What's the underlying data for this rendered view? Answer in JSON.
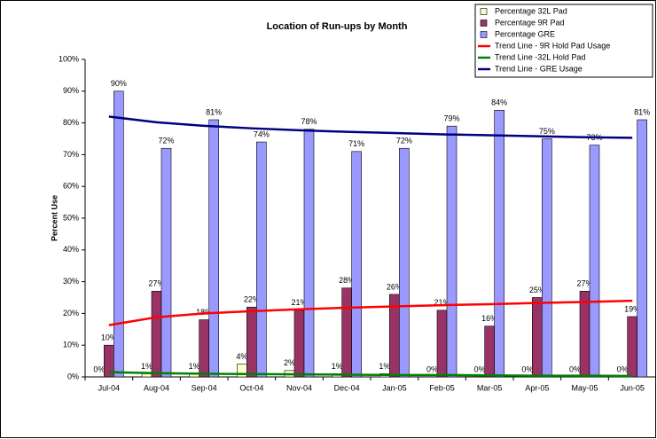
{
  "chart_data": {
    "type": "bar",
    "title": "Location of Run-ups by Month",
    "y_label": "Percent Use",
    "categories": [
      "Jul-04",
      "Aug-04",
      "Sep-04",
      "Oct-04",
      "Nov-04",
      "Dec-04",
      "Jan-05",
      "Feb-05",
      "Mar-05",
      "Apr-05",
      "May-05",
      "Jun-05"
    ],
    "ylim": [
      0,
      100
    ],
    "yticks": [
      {
        "value": 0,
        "label": "0%"
      },
      {
        "value": 10,
        "label": "10%"
      },
      {
        "value": 20,
        "label": "20%"
      },
      {
        "value": 30,
        "label": "30%"
      },
      {
        "value": 40,
        "label": "40%"
      },
      {
        "value": 50,
        "label": "50%"
      },
      {
        "value": 60,
        "label": "60%"
      },
      {
        "value": 70,
        "label": "70%"
      },
      {
        "value": 80,
        "label": "80%"
      },
      {
        "value": 90,
        "label": "90%"
      },
      {
        "value": 100,
        "label": "100%"
      }
    ],
    "grid": false,
    "legend": "top-right",
    "series": [
      {
        "name": "Percentage 32L Pad",
        "type": "bar",
        "color": "#ffffcc",
        "values": [
          0,
          1,
          1,
          4,
          2,
          1,
          1,
          0,
          0,
          0,
          0,
          0
        ],
        "value_labels": [
          "0%",
          "1%",
          "1%",
          "4%",
          "2%",
          "1%",
          "1%",
          "0%",
          "0%",
          "0%",
          "0%",
          "0%"
        ]
      },
      {
        "name": "Percentage 9R Pad",
        "type": "bar",
        "color": "#993366",
        "values": [
          10,
          27,
          18,
          22,
          21,
          28,
          26,
          21,
          16,
          25,
          27,
          19
        ],
        "value_labels": [
          "10%",
          "27%",
          "18%",
          "22%",
          "21%",
          "28%",
          "26%",
          "21%",
          "16%",
          "25%",
          "27%",
          "19%"
        ]
      },
      {
        "name": "Percentage GRE",
        "type": "bar",
        "color": "#9999ff",
        "values": [
          90,
          72,
          81,
          74,
          78,
          71,
          72,
          79,
          84,
          75,
          73,
          81
        ],
        "value_labels": [
          "90%",
          "72%",
          "81%",
          "74%",
          "78%",
          "71%",
          "72%",
          "79%",
          "84%",
          "75%",
          "73%",
          "81%"
        ]
      },
      {
        "name": "Trend Line - 9R Hold Pad Usage",
        "type": "line",
        "color": "#ff0000",
        "values": [
          16.3,
          18.8,
          20,
          20.7,
          21.3,
          21.8,
          22.2,
          22.6,
          22.9,
          23.3,
          23.6,
          24
        ]
      },
      {
        "name": "Trend Line -32L Hold Pad",
        "type": "line",
        "color": "#008000",
        "values": [
          1.5,
          1.2,
          1,
          0.9,
          0.8,
          0.7,
          0.6,
          0.6,
          0.5,
          0.4,
          0.4,
          0.3
        ]
      },
      {
        "name": "Trend Line - GRE Usage",
        "type": "line",
        "color": "#000080",
        "values": [
          82,
          80.2,
          79.1,
          78.3,
          77.7,
          77.2,
          76.8,
          76.4,
          76.1,
          75.8,
          75.5,
          75.3
        ]
      }
    ]
  }
}
